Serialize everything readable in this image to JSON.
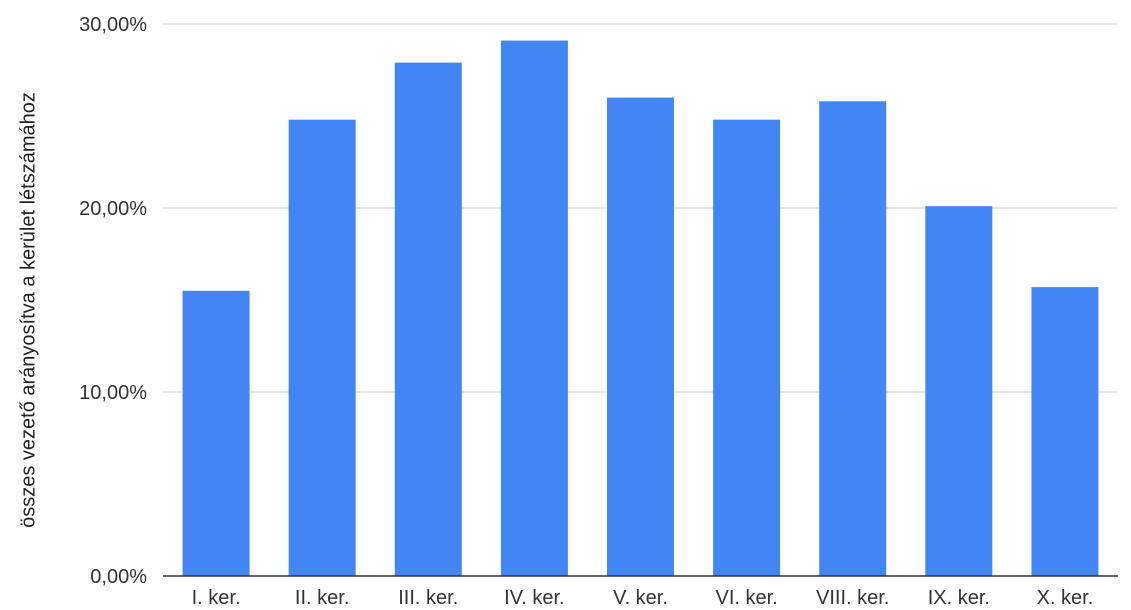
{
  "chart_data": {
    "type": "bar",
    "title": "",
    "xlabel": "",
    "ylabel": "összes vezető arányosítva a kerület létszámához",
    "categories": [
      "I. ker.",
      "II. ker.",
      "III. ker.",
      "IV. ker.",
      "V. ker.",
      "VI. ker.",
      "VIII. ker.",
      "IX. ker.",
      "X. ker."
    ],
    "values": [
      15.5,
      24.8,
      27.9,
      29.1,
      26.0,
      24.8,
      25.8,
      20.1,
      15.7
    ],
    "ylim": [
      0,
      30
    ],
    "yticks": [
      0,
      10,
      20,
      30
    ],
    "ytick_labels": [
      "0,00%",
      "10,00%",
      "20,00%",
      "30,00%"
    ],
    "grid": true,
    "legend": "none",
    "colors": {
      "bar": "#4285f4",
      "grid": "#cccccc",
      "axis": "#333333"
    }
  }
}
